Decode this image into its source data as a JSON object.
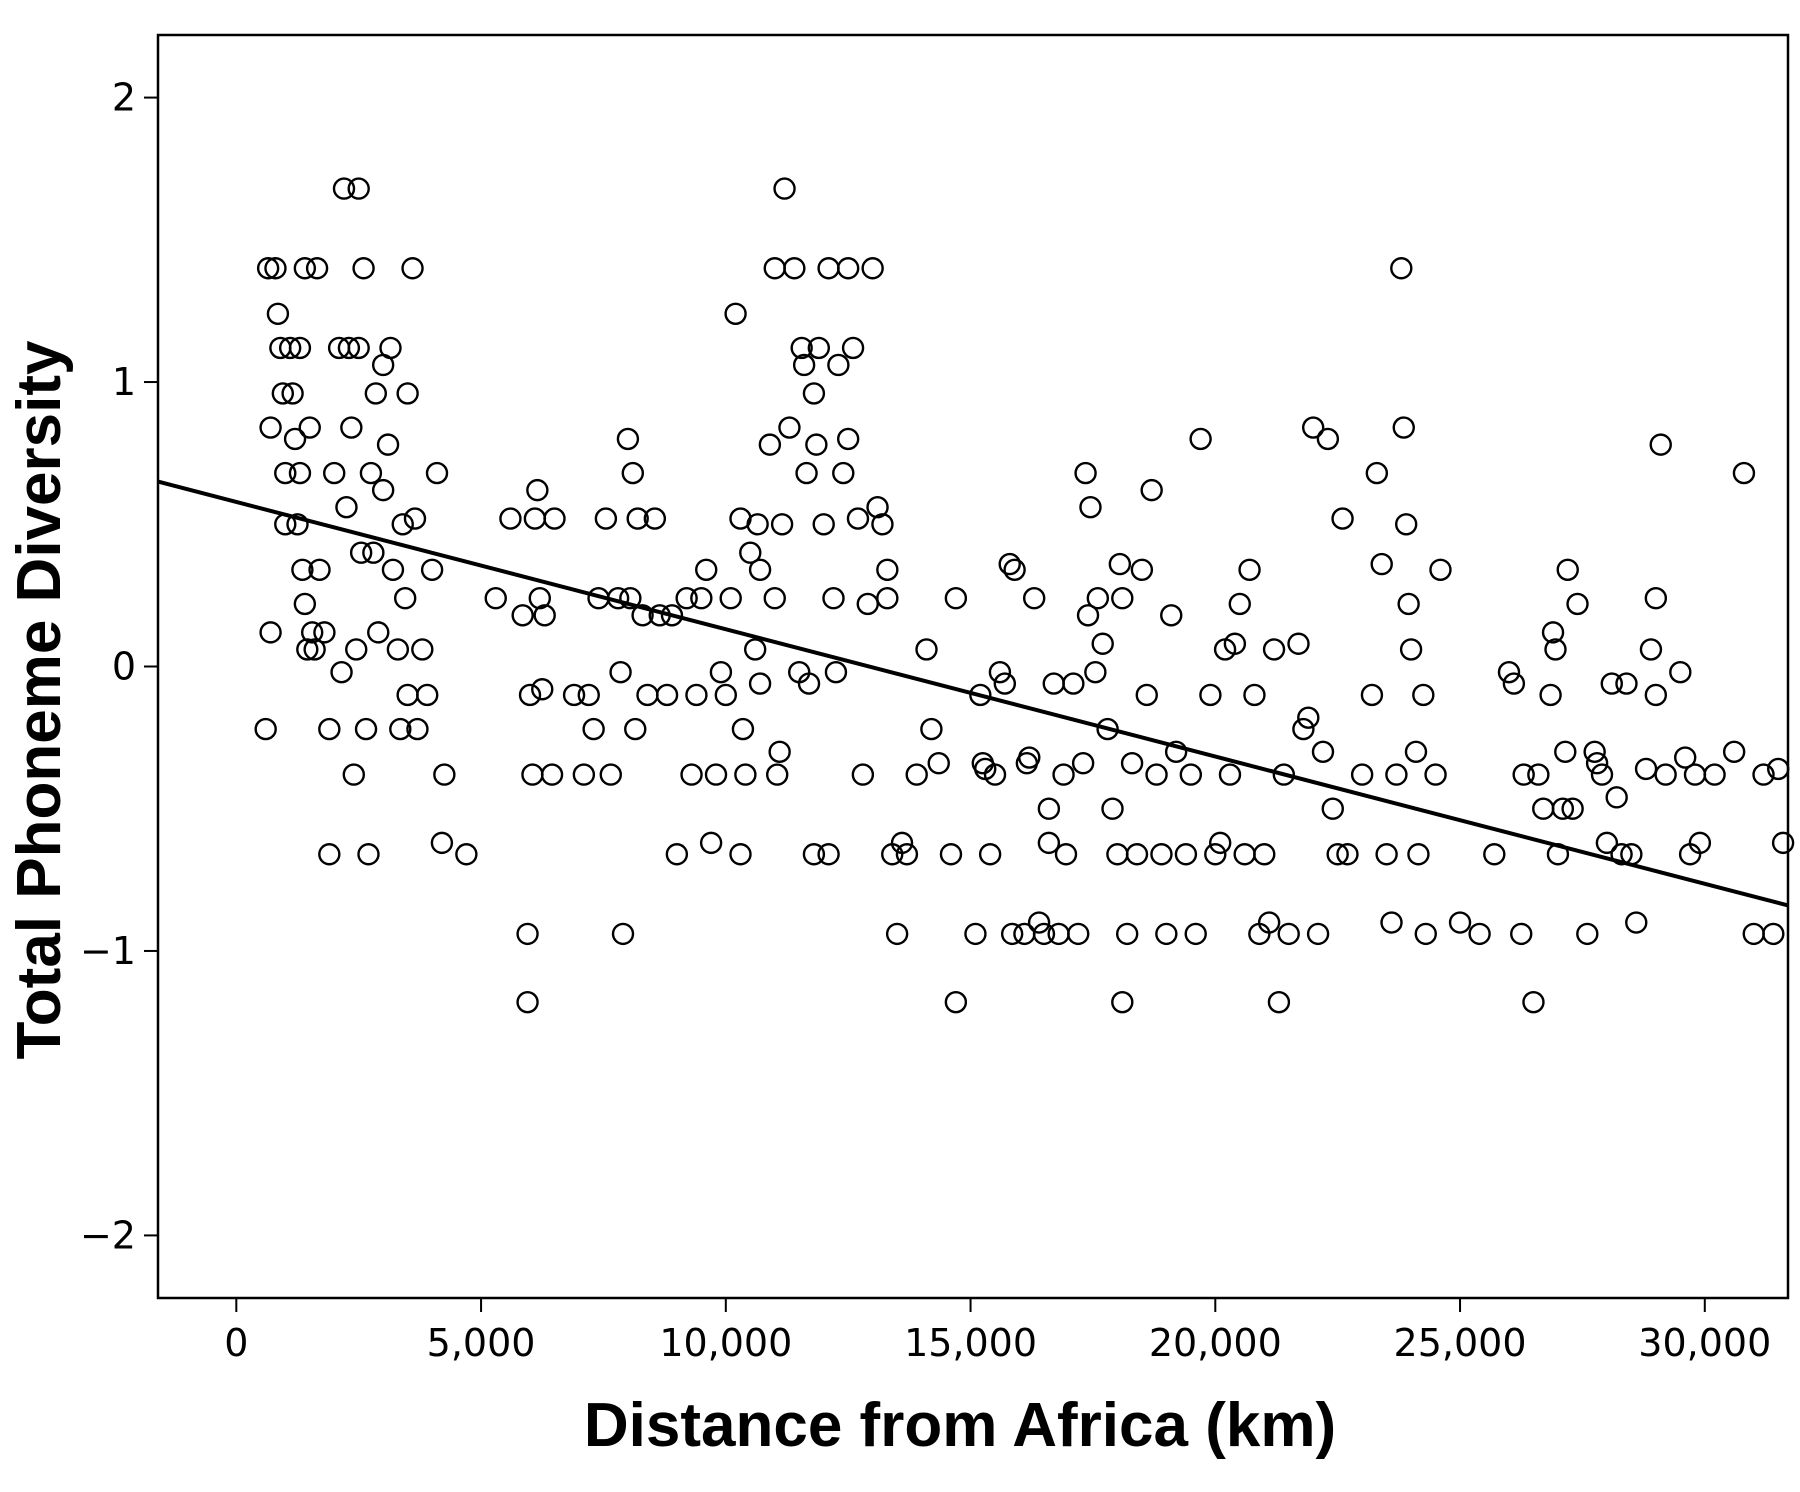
{
  "chart_data": {
    "type": "scatter",
    "xlabel": "Distance from Africa (km)",
    "ylabel": "Total Phoneme Diversity",
    "xlim": [
      -1600,
      31700
    ],
    "ylim": [
      -2.22,
      2.22
    ],
    "x_ticks": [
      0,
      5000,
      10000,
      15000,
      20000,
      25000,
      30000
    ],
    "x_tick_labels": [
      "0",
      "5,000",
      "10,000",
      "15,000",
      "20,000",
      "25,000",
      "30,000"
    ],
    "y_ticks": [
      2,
      1,
      0,
      -1,
      -2
    ],
    "y_tick_labels": [
      "2",
      "1",
      "0",
      "−1",
      "−2"
    ],
    "grid": false,
    "legend": "none",
    "fit_line": {
      "x": [
        -1600,
        31700
      ],
      "y": [
        0.65,
        -0.84
      ]
    },
    "marker": "open-circle",
    "points": [
      [
        600,
        -0.22
      ],
      [
        650,
        1.4
      ],
      [
        700,
        0.12
      ],
      [
        700,
        0.84
      ],
      [
        800,
        1.4
      ],
      [
        850,
        1.24
      ],
      [
        900,
        1.12
      ],
      [
        950,
        0.96
      ],
      [
        1000,
        0.68
      ],
      [
        1000,
        0.5
      ],
      [
        1100,
        1.12
      ],
      [
        1150,
        0.96
      ],
      [
        1200,
        0.8
      ],
      [
        1250,
        0.5
      ],
      [
        1300,
        0.68
      ],
      [
        1300,
        1.12
      ],
      [
        1350,
        0.34
      ],
      [
        1400,
        1.4
      ],
      [
        1400,
        0.22
      ],
      [
        1450,
        0.06
      ],
      [
        1500,
        0.84
      ],
      [
        1550,
        0.12
      ],
      [
        1600,
        0.06
      ],
      [
        1650,
        1.4
      ],
      [
        1700,
        0.34
      ],
      [
        1800,
        0.12
      ],
      [
        1900,
        -0.22
      ],
      [
        1900,
        -0.66
      ],
      [
        2000,
        0.68
      ],
      [
        2100,
        1.12
      ],
      [
        2150,
        -0.02
      ],
      [
        2200,
        1.68
      ],
      [
        2250,
        0.56
      ],
      [
        2300,
        1.12
      ],
      [
        2350,
        0.84
      ],
      [
        2400,
        -0.38
      ],
      [
        2450,
        0.06
      ],
      [
        2500,
        1.12
      ],
      [
        2500,
        1.68
      ],
      [
        2550,
        0.4
      ],
      [
        2600,
        1.4
      ],
      [
        2650,
        -0.22
      ],
      [
        2700,
        -0.66
      ],
      [
        2750,
        0.68
      ],
      [
        2800,
        0.4
      ],
      [
        2850,
        0.96
      ],
      [
        2900,
        0.12
      ],
      [
        3000,
        1.06
      ],
      [
        3000,
        0.62
      ],
      [
        3100,
        0.78
      ],
      [
        3150,
        1.12
      ],
      [
        3200,
        0.34
      ],
      [
        3300,
        0.06
      ],
      [
        3350,
        -0.22
      ],
      [
        3400,
        0.5
      ],
      [
        3450,
        0.24
      ],
      [
        3500,
        0.96
      ],
      [
        3500,
        -0.1
      ],
      [
        3600,
        1.4
      ],
      [
        3650,
        0.52
      ],
      [
        3700,
        -0.22
      ],
      [
        3800,
        0.06
      ],
      [
        3900,
        -0.1
      ],
      [
        4000,
        0.34
      ],
      [
        4100,
        0.68
      ],
      [
        4250,
        -0.38
      ],
      [
        4200,
        -0.62
      ],
      [
        4700,
        -0.66
      ],
      [
        5300,
        0.24
      ],
      [
        5600,
        0.52
      ],
      [
        5850,
        0.18
      ],
      [
        5950,
        -0.94
      ],
      [
        5950,
        -1.18
      ],
      [
        6000,
        -0.1
      ],
      [
        6050,
        -0.38
      ],
      [
        6100,
        0.52
      ],
      [
        6150,
        0.62
      ],
      [
        6200,
        0.24
      ],
      [
        6250,
        -0.08
      ],
      [
        6300,
        0.18
      ],
      [
        6450,
        -0.38
      ],
      [
        6500,
        0.52
      ],
      [
        6900,
        -0.1
      ],
      [
        7100,
        -0.38
      ],
      [
        7200,
        -0.1
      ],
      [
        7300,
        -0.22
      ],
      [
        7400,
        0.24
      ],
      [
        7550,
        0.52
      ],
      [
        7650,
        -0.38
      ],
      [
        7800,
        0.24
      ],
      [
        7850,
        -0.02
      ],
      [
        7900,
        -0.94
      ],
      [
        8000,
        0.8
      ],
      [
        8050,
        0.24
      ],
      [
        8100,
        0.68
      ],
      [
        8150,
        -0.22
      ],
      [
        8200,
        0.52
      ],
      [
        8300,
        0.18
      ],
      [
        8400,
        -0.1
      ],
      [
        8550,
        0.52
      ],
      [
        8650,
        0.18
      ],
      [
        8800,
        -0.1
      ],
      [
        8900,
        0.18
      ],
      [
        9000,
        -0.66
      ],
      [
        9200,
        0.24
      ],
      [
        9300,
        -0.38
      ],
      [
        9400,
        -0.1
      ],
      [
        9500,
        0.24
      ],
      [
        9600,
        0.34
      ],
      [
        9700,
        -0.62
      ],
      [
        9800,
        -0.38
      ],
      [
        9900,
        -0.02
      ],
      [
        10000,
        -0.1
      ],
      [
        10100,
        0.24
      ],
      [
        10200,
        1.24
      ],
      [
        10300,
        0.52
      ],
      [
        10300,
        -0.66
      ],
      [
        10350,
        -0.22
      ],
      [
        10400,
        -0.38
      ],
      [
        10500,
        0.4
      ],
      [
        10600,
        0.06
      ],
      [
        10650,
        0.5
      ],
      [
        10700,
        0.34
      ],
      [
        10700,
        -0.06
      ],
      [
        10900,
        0.78
      ],
      [
        11000,
        1.4
      ],
      [
        11000,
        0.24
      ],
      [
        11050,
        -0.38
      ],
      [
        11100,
        -0.3
      ],
      [
        11150,
        0.5
      ],
      [
        11200,
        1.68
      ],
      [
        11300,
        0.84
      ],
      [
        11400,
        1.4
      ],
      [
        11500,
        -0.02
      ],
      [
        11550,
        1.12
      ],
      [
        11600,
        1.06
      ],
      [
        11650,
        0.68
      ],
      [
        11700,
        -0.06
      ],
      [
        11800,
        0.96
      ],
      [
        11850,
        0.78
      ],
      [
        11800,
        -0.66
      ],
      [
        11900,
        1.12
      ],
      [
        12000,
        0.5
      ],
      [
        12100,
        1.4
      ],
      [
        12100,
        -0.66
      ],
      [
        12200,
        0.24
      ],
      [
        12250,
        -0.02
      ],
      [
        12300,
        1.06
      ],
      [
        12400,
        0.68
      ],
      [
        12500,
        1.4
      ],
      [
        12500,
        0.8
      ],
      [
        12600,
        1.12
      ],
      [
        12700,
        0.52
      ],
      [
        12800,
        -0.38
      ],
      [
        12900,
        0.22
      ],
      [
        13000,
        1.4
      ],
      [
        13100,
        0.56
      ],
      [
        13200,
        0.5
      ],
      [
        13300,
        0.24
      ],
      [
        13300,
        0.34
      ],
      [
        13400,
        -0.66
      ],
      [
        13500,
        -0.94
      ],
      [
        13600,
        -0.62
      ],
      [
        13700,
        -0.66
      ],
      [
        13900,
        -0.38
      ],
      [
        14100,
        0.06
      ],
      [
        14200,
        -0.22
      ],
      [
        14350,
        -0.34
      ],
      [
        14600,
        -0.66
      ],
      [
        14700,
        -1.18
      ],
      [
        14700,
        0.24
      ],
      [
        15100,
        -0.94
      ],
      [
        15200,
        -0.1
      ],
      [
        15250,
        -0.34
      ],
      [
        15300,
        -0.36
      ],
      [
        15400,
        -0.66
      ],
      [
        15500,
        -0.38
      ],
      [
        15600,
        -0.02
      ],
      [
        15700,
        -0.06
      ],
      [
        15800,
        0.36
      ],
      [
        15850,
        -0.94
      ],
      [
        15900,
        0.34
      ],
      [
        16100,
        -0.94
      ],
      [
        16150,
        -0.34
      ],
      [
        16200,
        -0.32
      ],
      [
        16300,
        0.24
      ],
      [
        16400,
        -0.9
      ],
      [
        16500,
        -0.94
      ],
      [
        16600,
        -0.5
      ],
      [
        16600,
        -0.62
      ],
      [
        16700,
        -0.06
      ],
      [
        16800,
        -0.94
      ],
      [
        16900,
        -0.38
      ],
      [
        16950,
        -0.66
      ],
      [
        17100,
        -0.06
      ],
      [
        17200,
        -0.94
      ],
      [
        17300,
        -0.34
      ],
      [
        17350,
        0.68
      ],
      [
        17400,
        0.18
      ],
      [
        17450,
        0.56
      ],
      [
        17550,
        -0.02
      ],
      [
        17600,
        0.24
      ],
      [
        17700,
        0.08
      ],
      [
        17800,
        -0.22
      ],
      [
        17900,
        -0.5
      ],
      [
        18000,
        -0.66
      ],
      [
        18050,
        0.36
      ],
      [
        18100,
        -1.18
      ],
      [
        18100,
        0.24
      ],
      [
        18200,
        -0.94
      ],
      [
        18300,
        -0.34
      ],
      [
        18400,
        -0.66
      ],
      [
        18500,
        0.34
      ],
      [
        18600,
        -0.1
      ],
      [
        18700,
        0.62
      ],
      [
        18800,
        -0.38
      ],
      [
        18900,
        -0.66
      ],
      [
        19000,
        -0.94
      ],
      [
        19100,
        0.18
      ],
      [
        19200,
        -0.3
      ],
      [
        19400,
        -0.66
      ],
      [
        19500,
        -0.38
      ],
      [
        19600,
        -0.94
      ],
      [
        19700,
        0.8
      ],
      [
        19900,
        -0.1
      ],
      [
        20000,
        -0.66
      ],
      [
        20100,
        -0.62
      ],
      [
        20200,
        0.06
      ],
      [
        20300,
        -0.38
      ],
      [
        20400,
        0.08
      ],
      [
        20500,
        0.22
      ],
      [
        20600,
        -0.66
      ],
      [
        20700,
        0.34
      ],
      [
        20800,
        -0.1
      ],
      [
        20900,
        -0.94
      ],
      [
        21000,
        -0.66
      ],
      [
        21100,
        -0.9
      ],
      [
        21200,
        0.06
      ],
      [
        21300,
        -1.18
      ],
      [
        21400,
        -0.38
      ],
      [
        21500,
        -0.94
      ],
      [
        21700,
        0.08
      ],
      [
        21800,
        -0.22
      ],
      [
        21900,
        -0.18
      ],
      [
        22000,
        0.84
      ],
      [
        22100,
        -0.94
      ],
      [
        22200,
        -0.3
      ],
      [
        22300,
        0.8
      ],
      [
        22400,
        -0.5
      ],
      [
        22500,
        -0.66
      ],
      [
        22600,
        0.52
      ],
      [
        22700,
        -0.66
      ],
      [
        23000,
        -0.38
      ],
      [
        23200,
        -0.1
      ],
      [
        23300,
        0.68
      ],
      [
        23400,
        0.36
      ],
      [
        23500,
        -0.66
      ],
      [
        23600,
        -0.9
      ],
      [
        23700,
        -0.38
      ],
      [
        23800,
        1.4
      ],
      [
        23850,
        0.84
      ],
      [
        23900,
        0.5
      ],
      [
        23950,
        0.22
      ],
      [
        24000,
        0.06
      ],
      [
        24100,
        -0.3
      ],
      [
        24150,
        -0.66
      ],
      [
        24250,
        -0.1
      ],
      [
        24300,
        -0.94
      ],
      [
        24500,
        -0.38
      ],
      [
        24600,
        0.34
      ],
      [
        25000,
        -0.9
      ],
      [
        25400,
        -0.94
      ],
      [
        25700,
        -0.66
      ],
      [
        26000,
        -0.02
      ],
      [
        26100,
        -0.06
      ],
      [
        26250,
        -0.94
      ],
      [
        26300,
        -0.38
      ],
      [
        26500,
        -1.18
      ],
      [
        26600,
        -0.38
      ],
      [
        26700,
        -0.5
      ],
      [
        26850,
        -0.1
      ],
      [
        26900,
        0.12
      ],
      [
        26950,
        0.06
      ],
      [
        27000,
        -0.66
      ],
      [
        27100,
        -0.5
      ],
      [
        27150,
        -0.3
      ],
      [
        27200,
        0.34
      ],
      [
        27300,
        -0.5
      ],
      [
        27400,
        0.22
      ],
      [
        27600,
        -0.94
      ],
      [
        27750,
        -0.3
      ],
      [
        27800,
        -0.34
      ],
      [
        27900,
        -0.38
      ],
      [
        28000,
        -0.62
      ],
      [
        28100,
        -0.06
      ],
      [
        28200,
        -0.46
      ],
      [
        28300,
        -0.66
      ],
      [
        28400,
        -0.06
      ],
      [
        28500,
        -0.66
      ],
      [
        28600,
        -0.9
      ],
      [
        28800,
        -0.36
      ],
      [
        28900,
        0.06
      ],
      [
        29000,
        0.24
      ],
      [
        29000,
        -0.1
      ],
      [
        29100,
        0.78
      ],
      [
        29200,
        -0.38
      ],
      [
        29500,
        -0.02
      ],
      [
        29600,
        -0.32
      ],
      [
        29700,
        -0.66
      ],
      [
        29800,
        -0.38
      ],
      [
        29900,
        -0.62
      ],
      [
        30200,
        -0.38
      ],
      [
        30600,
        -0.3
      ],
      [
        30800,
        0.68
      ],
      [
        31000,
        -0.94
      ],
      [
        31200,
        -0.38
      ],
      [
        31400,
        -0.94
      ],
      [
        31500,
        -0.36
      ],
      [
        31600,
        -0.62
      ]
    ]
  }
}
